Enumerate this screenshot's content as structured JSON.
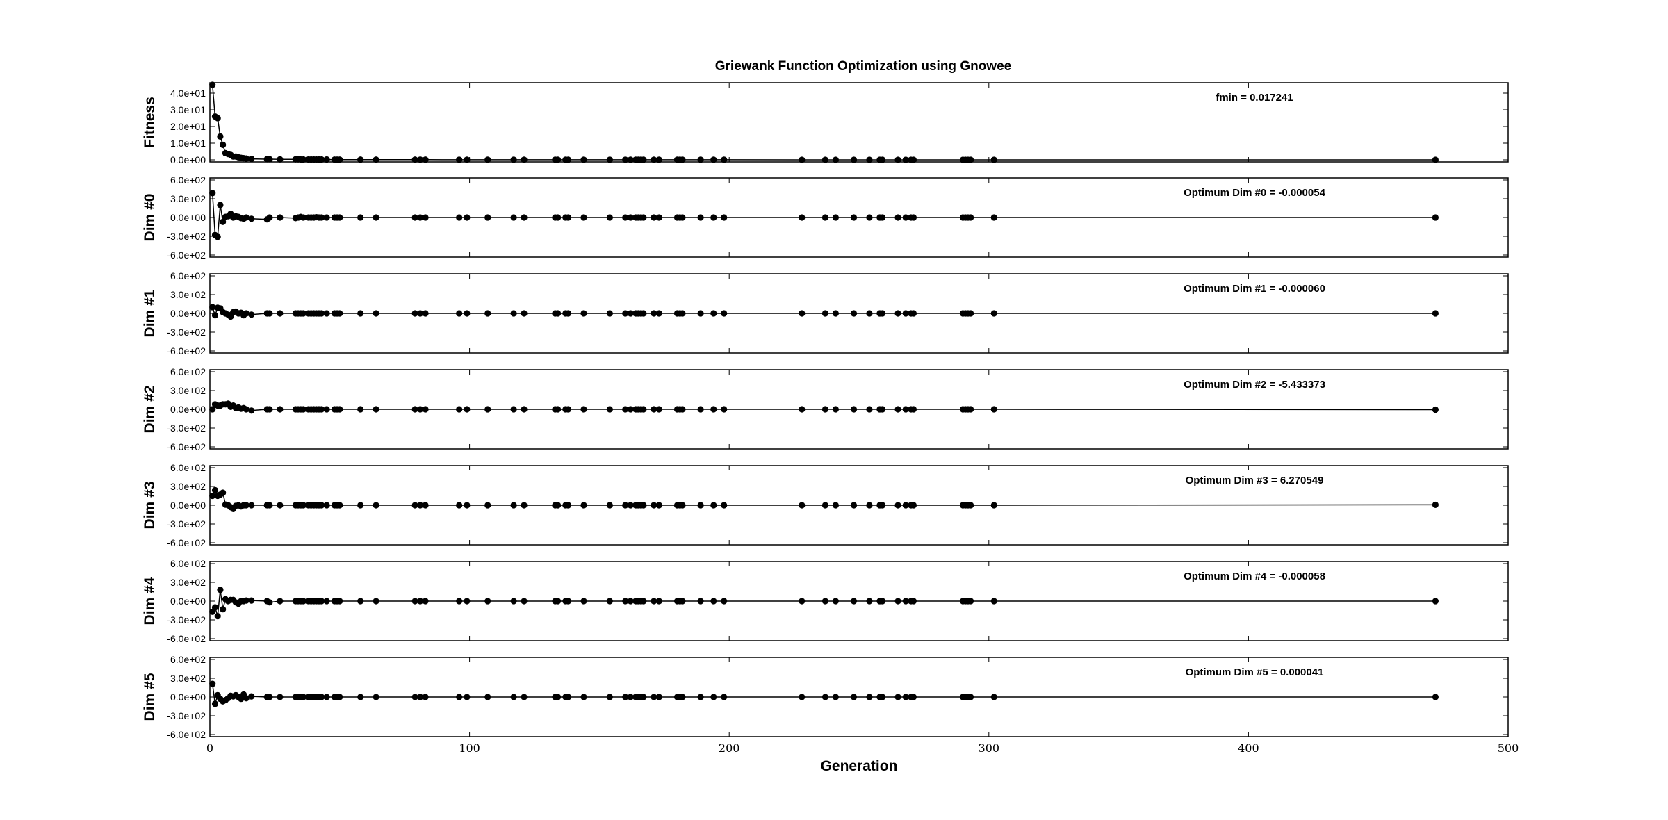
{
  "chart_data": {
    "type": "scatter",
    "title": "Griewank Function Optimization using Gnowee",
    "xlabel": "Generation",
    "xlim": [
      0,
      500
    ],
    "x_ticks": [
      "0",
      "100",
      "200",
      "300",
      "400",
      "500"
    ],
    "x_tick_values": [
      0,
      100,
      200,
      300,
      400,
      500
    ],
    "marker_color": "#000000",
    "line_color": "#000000",
    "grid": false,
    "x": [
      1,
      2,
      3,
      4,
      5,
      6,
      7,
      8,
      9,
      10,
      11,
      12,
      13,
      14,
      16,
      22,
      23,
      27,
      33,
      34,
      35,
      36,
      38,
      39,
      40,
      41,
      42,
      43,
      45,
      48,
      49,
      50,
      58,
      64,
      79,
      81,
      83,
      96,
      99,
      107,
      117,
      121,
      133,
      134,
      137,
      138,
      144,
      154,
      160,
      162,
      164,
      165,
      166,
      167,
      171,
      173,
      180,
      181,
      182,
      189,
      194,
      198,
      228,
      237,
      241,
      248,
      254,
      258,
      259,
      265,
      268,
      270,
      271,
      290,
      291,
      292,
      293,
      302,
      472
    ],
    "panels": [
      {
        "ylabel": "Fitness",
        "ylim": [
          0,
          45
        ],
        "y_ticks": [
          "0.0e+00",
          "1.0e+01",
          "2.0e+01",
          "3.0e+01",
          "4.0e+01"
        ],
        "y_tick_values": [
          0,
          10,
          20,
          30,
          40
        ],
        "annotation": "fmin = 0.017241",
        "values": [
          45,
          26,
          25,
          14,
          9,
          4,
          3.5,
          3,
          2,
          2,
          1.5,
          1.2,
          1,
          0.8,
          0.6,
          0.4,
          0.4,
          0.3,
          0.3,
          0.3,
          0.2,
          0.2,
          0.2,
          0.2,
          0.2,
          0.2,
          0.2,
          0.2,
          0.2,
          0.1,
          0.1,
          0.1,
          0.1,
          0.1,
          0.1,
          0.1,
          0.1,
          0.05,
          0.05,
          0.05,
          0.05,
          0.05,
          0.05,
          0.05,
          0.05,
          0.05,
          0.05,
          0.05,
          0.05,
          0.05,
          0.05,
          0.05,
          0.05,
          0.05,
          0.05,
          0.05,
          0.05,
          0.05,
          0.05,
          0.05,
          0.05,
          0.05,
          0.02,
          0.02,
          0.02,
          0.02,
          0.02,
          0.02,
          0.02,
          0.02,
          0.02,
          0.02,
          0.02,
          0.02,
          0.02,
          0.02,
          0.02,
          0.02,
          0.017
        ]
      },
      {
        "ylabel": "Dim #0",
        "ylim": [
          -600,
          600
        ],
        "y_ticks": [
          "6.0e+02",
          "3.0e+02",
          "0.0e+00",
          "-3.0e+02",
          "-6.0e+02"
        ],
        "y_tick_values": [
          600,
          300,
          0,
          -300,
          -600
        ],
        "annotation": "Optimum Dim #0 = -0.000054",
        "values": [
          390,
          -280,
          -310,
          200,
          -70,
          10,
          20,
          60,
          0,
          20,
          10,
          -10,
          -20,
          0,
          -20,
          -30,
          0,
          0,
          -10,
          0,
          10,
          0,
          0,
          0,
          0,
          5,
          0,
          0,
          0,
          0,
          0,
          0,
          0,
          0,
          0,
          0,
          0,
          0,
          0,
          0,
          0,
          0,
          0,
          0,
          0,
          0,
          0,
          0,
          0,
          0,
          0,
          0,
          0,
          0,
          0,
          0,
          0,
          0,
          0,
          0,
          0,
          0,
          0,
          0,
          0,
          0,
          0,
          0,
          0,
          0,
          0,
          0,
          0,
          0,
          0,
          0,
          0,
          0,
          0
        ]
      },
      {
        "ylabel": "Dim #1",
        "ylim": [
          -600,
          600
        ],
        "y_ticks": [
          "6.0e+02",
          "3.0e+02",
          "0.0e+00",
          "-3.0e+02",
          "-6.0e+02"
        ],
        "y_tick_values": [
          600,
          300,
          0,
          -300,
          -600
        ],
        "annotation": "Optimum Dim #1 = -0.000060",
        "values": [
          100,
          -30,
          90,
          80,
          20,
          0,
          -20,
          -50,
          20,
          30,
          0,
          10,
          -30,
          0,
          -20,
          0,
          0,
          0,
          0,
          0,
          0,
          0,
          0,
          0,
          0,
          0,
          0,
          0,
          0,
          0,
          0,
          0,
          0,
          0,
          0,
          0,
          0,
          0,
          0,
          0,
          0,
          0,
          0,
          0,
          0,
          0,
          0,
          0,
          0,
          0,
          0,
          0,
          0,
          0,
          0,
          0,
          0,
          0,
          0,
          0,
          0,
          0,
          0,
          0,
          0,
          0,
          0,
          0,
          0,
          0,
          0,
          0,
          0,
          0,
          0,
          0,
          0,
          0,
          0
        ]
      },
      {
        "ylabel": "Dim #2",
        "ylim": [
          -600,
          600
        ],
        "y_ticks": [
          "6.0e+02",
          "3.0e+02",
          "0.0e+00",
          "-3.0e+02",
          "-6.0e+02"
        ],
        "y_tick_values": [
          600,
          300,
          0,
          -300,
          -600
        ],
        "annotation": "Optimum Dim #2 = -5.433373",
        "values": [
          0,
          80,
          60,
          60,
          80,
          80,
          90,
          40,
          60,
          20,
          30,
          10,
          20,
          0,
          -20,
          0,
          0,
          0,
          0,
          0,
          0,
          0,
          0,
          0,
          0,
          0,
          0,
          0,
          0,
          0,
          0,
          0,
          0,
          0,
          0,
          0,
          0,
          0,
          0,
          0,
          0,
          0,
          0,
          0,
          0,
          0,
          0,
          0,
          0,
          0,
          0,
          0,
          0,
          0,
          0,
          0,
          0,
          0,
          0,
          0,
          0,
          0,
          0,
          0,
          0,
          0,
          0,
          0,
          0,
          0,
          0,
          0,
          0,
          0,
          0,
          0,
          0,
          0,
          -5.4
        ]
      },
      {
        "ylabel": "Dim #3",
        "ylim": [
          -600,
          600
        ],
        "y_ticks": [
          "6.0e+02",
          "3.0e+02",
          "0.0e+00",
          "-3.0e+02",
          "-6.0e+02"
        ],
        "y_tick_values": [
          600,
          300,
          0,
          -300,
          -600
        ],
        "annotation": "Optimum Dim #3 = 6.270549",
        "values": [
          150,
          240,
          150,
          170,
          200,
          10,
          0,
          -30,
          -60,
          -10,
          0,
          -20,
          0,
          0,
          0,
          0,
          0,
          0,
          0,
          0,
          0,
          0,
          0,
          0,
          0,
          0,
          0,
          0,
          0,
          0,
          0,
          0,
          0,
          0,
          0,
          0,
          0,
          0,
          0,
          0,
          0,
          0,
          0,
          0,
          0,
          0,
          0,
          0,
          0,
          0,
          0,
          0,
          0,
          0,
          0,
          0,
          0,
          0,
          0,
          0,
          0,
          0,
          0,
          0,
          0,
          0,
          0,
          0,
          0,
          0,
          0,
          0,
          0,
          0,
          0,
          0,
          0,
          0,
          6.3
        ]
      },
      {
        "ylabel": "Dim #4",
        "ylim": [
          -600,
          600
        ],
        "y_ticks": [
          "6.0e+02",
          "3.0e+02",
          "0.0e+00",
          "-3.0e+02",
          "-6.0e+02"
        ],
        "y_tick_values": [
          600,
          300,
          0,
          -300,
          -600
        ],
        "annotation": "Optimum Dim #4 = -0.000058",
        "values": [
          -170,
          -100,
          -240,
          180,
          -130,
          30,
          0,
          20,
          20,
          -20,
          -40,
          0,
          0,
          10,
          10,
          0,
          -20,
          0,
          0,
          0,
          0,
          0,
          0,
          0,
          0,
          0,
          0,
          0,
          0,
          0,
          0,
          0,
          0,
          0,
          0,
          0,
          0,
          0,
          0,
          0,
          0,
          0,
          0,
          0,
          0,
          0,
          0,
          0,
          0,
          0,
          0,
          0,
          0,
          0,
          0,
          0,
          0,
          0,
          0,
          0,
          0,
          0,
          0,
          0,
          0,
          0,
          0,
          0,
          0,
          0,
          0,
          0,
          0,
          0,
          0,
          0,
          0,
          0,
          0
        ]
      },
      {
        "ylabel": "Dim #5",
        "ylim": [
          -600,
          600
        ],
        "y_ticks": [
          "6.0e+02",
          "3.0e+02",
          "0.0e+00",
          "-3.0e+02",
          "-6.0e+02"
        ],
        "y_tick_values": [
          600,
          300,
          0,
          -300,
          -600
        ],
        "annotation": "Optimum Dim #5 = 0.000041",
        "values": [
          210,
          -110,
          30,
          -30,
          -70,
          -50,
          -20,
          20,
          10,
          30,
          0,
          -30,
          40,
          -20,
          10,
          0,
          0,
          0,
          0,
          0,
          0,
          0,
          0,
          0,
          0,
          0,
          0,
          0,
          0,
          0,
          0,
          0,
          0,
          0,
          0,
          0,
          0,
          0,
          0,
          0,
          0,
          0,
          0,
          0,
          0,
          0,
          0,
          0,
          0,
          0,
          0,
          0,
          0,
          0,
          0,
          0,
          0,
          0,
          0,
          0,
          0,
          0,
          0,
          0,
          0,
          0,
          0,
          0,
          0,
          0,
          0,
          0,
          0,
          0,
          0,
          0,
          0,
          0,
          0
        ]
      }
    ]
  }
}
